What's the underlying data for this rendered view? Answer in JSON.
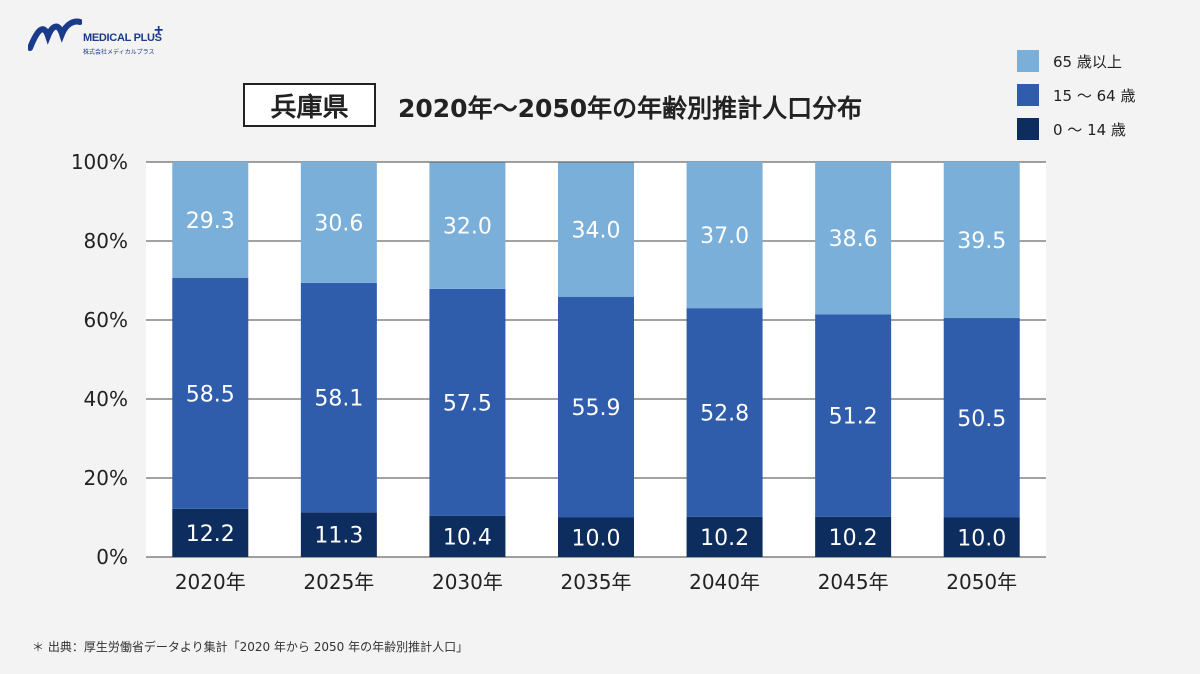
{
  "brand": {
    "name": "MEDICAL PLUS",
    "plus": "+",
    "subtitle": "株式会社メディカルプラス",
    "color": "#1a3a8a"
  },
  "header": {
    "prefecture": "兵庫県",
    "title": "2020年～2050年の年齢別推計人口分布"
  },
  "legend": [
    {
      "label": "65 歳以上",
      "color": "#7aafd9"
    },
    {
      "label": "15 ～ 64 歳",
      "color": "#2f5cab"
    },
    {
      "label": "0 ～ 14 歳",
      "color": "#0d2d5e"
    }
  ],
  "footnote": "＊ 出典：厚生労働省データより集計「2020 年から 2050 年の年齢別推計人口」",
  "chart_data": {
    "type": "bar",
    "stacked": true,
    "categories": [
      "2020年",
      "2025年",
      "2030年",
      "2035年",
      "2040年",
      "2045年",
      "2050年"
    ],
    "series": [
      {
        "name": "0 ～ 14 歳",
        "values": [
          12.2,
          11.3,
          10.4,
          10.0,
          10.2,
          10.2,
          10.0
        ],
        "color": "#0d2d5e"
      },
      {
        "name": "15 ～ 64 歳",
        "values": [
          58.5,
          58.1,
          57.5,
          55.9,
          52.8,
          51.2,
          50.5
        ],
        "color": "#2f5cab"
      },
      {
        "name": "65 歳以上",
        "values": [
          29.3,
          30.6,
          32.0,
          34.0,
          37.0,
          38.6,
          39.5
        ],
        "color": "#7aafd9"
      }
    ],
    "ylim": [
      0,
      100
    ],
    "yticks": [
      "0%",
      "20%",
      "40%",
      "60%",
      "80%",
      "100%"
    ],
    "grid": true,
    "legend_position": "top-right"
  }
}
